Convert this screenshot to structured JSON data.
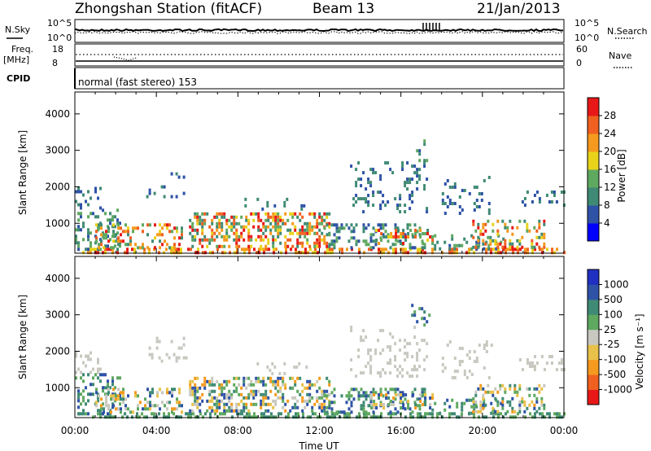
{
  "header": {
    "station": "Zhongshan Station (fitACF)",
    "beam": "Beam 13",
    "date": "21/Jan/2013"
  },
  "top_panels": {
    "nsky_label": "N.Sky",
    "nsky_ticks": [
      "10^5",
      "10^0"
    ],
    "nsearch_label": "N.Search",
    "nsearch_ticks": [
      "10^5",
      "10^0"
    ],
    "freq_label": "Freq.",
    "freq_unit": "[MHz]",
    "freq_ticks": [
      "18",
      "8"
    ],
    "nave_label": "Nave",
    "nave_ticks": [
      "60",
      "0"
    ],
    "cpid_label": "CPID",
    "cpid_text": "normal (fast stereo) 153"
  },
  "panels": {
    "power_ylabel": "Slant Range [km]",
    "velocity_ylabel": "Slant Range [km]",
    "xlabel": "Time UT"
  },
  "chart_data": [
    {
      "type": "heatmap",
      "title": "",
      "ylabel": "Slant Range [km]",
      "xlabel": "",
      "xlim": [
        0,
        24
      ],
      "ylim": [
        180,
        4600
      ],
      "yticks": [
        1000,
        2000,
        3000,
        4000
      ],
      "colorbar_label": "Power [dB]",
      "colorbar_ticks": [
        4,
        8,
        12,
        16,
        20,
        24,
        28
      ],
      "colorbar_colors": [
        "#0000ff",
        "#2e52a6",
        "#3f8a74",
        "#5fa860",
        "#e8d21a",
        "#f59a1e",
        "#f06020",
        "#e81818"
      ],
      "colorbar_range": [
        0,
        32
      ]
    },
    {
      "type": "heatmap",
      "title": "",
      "ylabel": "Slant Range [km]",
      "xlabel": "Time UT",
      "xlim": [
        0,
        24
      ],
      "ylim": [
        180,
        4600
      ],
      "yticks": [
        1000,
        2000,
        3000,
        4000
      ],
      "xticks": [
        "00:00",
        "04:00",
        "08:00",
        "12:00",
        "16:00",
        "20:00",
        "00:00"
      ],
      "colorbar_label": "Velocity [m s⁻¹]",
      "colorbar_ticks": [
        "-1000",
        "-500",
        "-100",
        "-25",
        "25",
        "100",
        "500",
        "1000"
      ],
      "colorbar_colors": [
        "#e81818",
        "#f06020",
        "#f59a1e",
        "#e8c14a",
        "#c8c8c0",
        "#5fa860",
        "#3f8a74",
        "#2e52a6",
        "#2030c0"
      ]
    }
  ]
}
